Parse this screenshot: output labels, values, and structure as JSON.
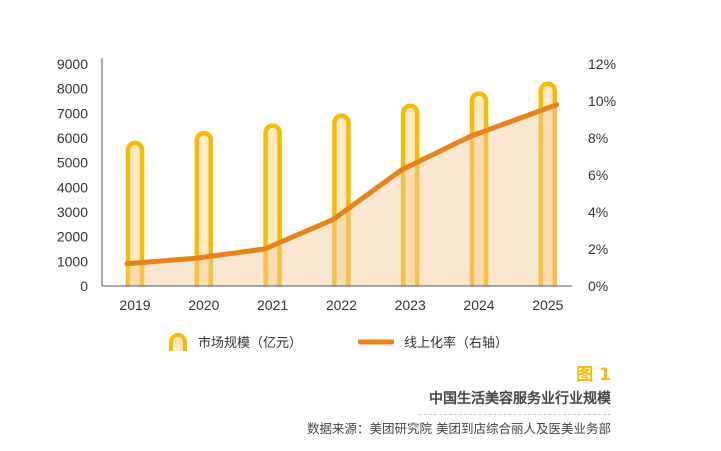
{
  "chart_data": {
    "type": "bar+line",
    "categories": [
      "2019",
      "2020",
      "2021",
      "2022",
      "2023",
      "2024",
      "2025"
    ],
    "series": [
      {
        "name": "市场规模（亿元）",
        "axis": "left",
        "type": "bar",
        "values": [
          5800,
          6200,
          6500,
          6900,
          7300,
          7800,
          8200
        ],
        "color": "#f8bb05"
      },
      {
        "name": "线上化率（右轴）",
        "axis": "right",
        "type": "area-line",
        "values": [
          1.2,
          1.5,
          2.0,
          3.6,
          6.3,
          8.1,
          9.8
        ],
        "color": "#e8821a",
        "fill": "#f8e4cc"
      }
    ],
    "left_axis": {
      "ylim": [
        0,
        9000
      ],
      "ticks": [
        "0",
        "1000",
        "2000",
        "3000",
        "4000",
        "5000",
        "6000",
        "7000",
        "8000",
        "9000"
      ]
    },
    "right_axis": {
      "ylim": [
        0,
        12
      ],
      "ticks": [
        "0%",
        "2%",
        "4%",
        "6%",
        "8%",
        "10%",
        "12%"
      ]
    },
    "legend_placement": "bottom"
  },
  "legend": {
    "bar_label": "市场规模（亿元）",
    "line_label": "线上化率（右轴）"
  },
  "caption": {
    "figure": "图 1",
    "title": "中国生活美容服务业行业规模",
    "source": "数据来源：美团研究院  美团到店综合丽人及医美业务部"
  }
}
